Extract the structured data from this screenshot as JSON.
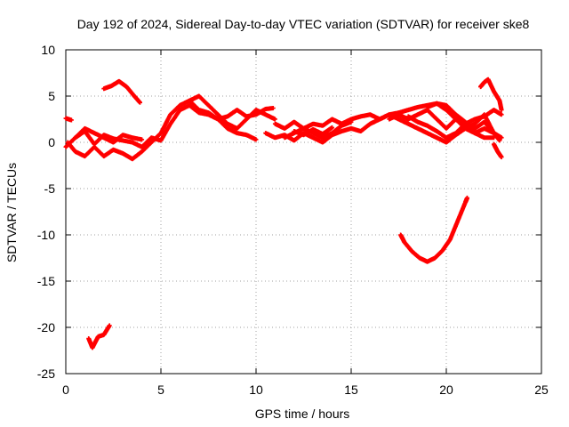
{
  "chart_data": {
    "type": "scatter",
    "title": "Day 192 of 2024, Sidereal Day-to-day VTEC variation (SDTVAR) for receiver ske8",
    "xlabel": "GPS time / hours",
    "ylabel": "SDTVAR / TECUs",
    "xlim": [
      0,
      25
    ],
    "ylim": [
      -25,
      10
    ],
    "xticks": [
      "0",
      "5",
      "10",
      "15",
      "20",
      "25"
    ],
    "yticks": [
      "10",
      "5",
      "0",
      "-5",
      "-10",
      "-15",
      "-20",
      "-25"
    ],
    "grid": true,
    "marker": "plus",
    "marker_color": "#ff0000",
    "series": [
      {
        "name": "s1",
        "x": [
          0.0,
          0.5,
          1.0,
          1.5,
          2.0,
          2.5,
          3.0,
          3.5,
          4.0,
          4.5,
          5.0,
          5.5,
          6.0,
          6.5,
          7.0,
          7.5,
          8.0,
          8.5,
          9.0,
          9.5,
          10.0,
          10.5,
          10.9
        ],
        "y": [
          -0.5,
          0.5,
          1.2,
          -0.2,
          0.8,
          0.4,
          0.2,
          0.0,
          -0.5,
          0.5,
          0.2,
          2.0,
          3.5,
          4.0,
          3.2,
          3.0,
          2.5,
          2.8,
          3.5,
          2.8,
          3.0,
          3.6,
          3.7
        ]
      },
      {
        "name": "s2",
        "x": [
          0.1,
          0.5,
          1.0,
          1.5,
          2.0,
          2.5,
          3.0,
          3.5,
          4.0,
          4.5,
          5.0,
          5.5,
          6.0,
          6.5,
          7.0,
          7.5,
          8.0,
          8.5,
          9.0,
          9.5,
          10.0
        ],
        "y": [
          0.0,
          -1.0,
          -1.5,
          -0.5,
          -1.5,
          -0.8,
          -1.2,
          -1.8,
          -1.0,
          0.0,
          1.0,
          3.0,
          4.0,
          4.5,
          3.5,
          3.2,
          2.5,
          1.5,
          1.0,
          0.8,
          0.3
        ]
      },
      {
        "name": "s3",
        "x": [
          0.5,
          1.0,
          1.5,
          2.0,
          2.5,
          3.0,
          3.5,
          4.0
        ],
        "y": [
          0.5,
          1.5,
          1.0,
          0.5,
          0.0,
          0.8,
          0.5,
          0.3
        ]
      },
      {
        "name": "s4",
        "x": [
          6.5,
          7.0,
          7.5,
          8.0,
          8.5,
          9.0,
          9.5,
          10.0,
          10.5,
          11.0
        ],
        "y": [
          4.5,
          5.0,
          4.0,
          3.0,
          2.0,
          1.5,
          2.5,
          3.5,
          3.0,
          2.5
        ]
      },
      {
        "name": "s5",
        "x": [
          0.0,
          0.3
        ],
        "y": [
          2.6,
          2.4
        ]
      },
      {
        "name": "s6",
        "x": [
          2.0,
          2.4,
          2.8,
          3.2,
          3.6,
          3.9
        ],
        "y": [
          5.8,
          6.1,
          6.6,
          6.0,
          5.0,
          4.3
        ]
      },
      {
        "name": "s7",
        "x": [
          1.2,
          1.4,
          1.7,
          2.0,
          2.3
        ],
        "y": [
          -21.2,
          -22.2,
          -21.0,
          -20.8,
          -19.8
        ]
      },
      {
        "name": "s8",
        "x": [
          11.0,
          11.5,
          12.0,
          12.5,
          13.0,
          13.5,
          14.0,
          14.5,
          15.0,
          15.5,
          16.0,
          16.5,
          17.0,
          17.5,
          18.0,
          18.5,
          19.0,
          19.5,
          20.0,
          20.5,
          21.0,
          21.5,
          22.0,
          22.5,
          22.9
        ],
        "y": [
          2.0,
          1.5,
          2.2,
          1.5,
          2.0,
          1.8,
          2.5,
          2.0,
          2.5,
          2.8,
          3.0,
          2.5,
          3.0,
          3.2,
          3.5,
          3.8,
          4.0,
          4.2,
          3.5,
          2.5,
          2.0,
          2.5,
          2.8,
          3.5,
          3.0
        ]
      },
      {
        "name": "s9",
        "x": [
          10.5,
          11.0,
          11.5,
          12.0,
          12.5,
          13.0,
          13.5,
          14.0,
          14.5,
          15.0,
          15.5,
          16.0,
          16.5,
          17.0,
          17.5,
          18.0,
          18.5,
          19.0,
          19.5,
          20.0,
          20.5,
          21.0,
          21.5,
          22.0,
          22.5,
          22.9
        ],
        "y": [
          1.0,
          0.5,
          0.8,
          0.2,
          1.0,
          0.5,
          0.0,
          0.8,
          1.2,
          1.5,
          1.2,
          2.0,
          2.5,
          3.0,
          2.5,
          2.0,
          1.5,
          1.0,
          0.5,
          0.0,
          0.8,
          1.5,
          1.0,
          1.5,
          1.0,
          0.5
        ]
      },
      {
        "name": "s10",
        "x": [
          11.5,
          12.0,
          12.5,
          13.0,
          13.5,
          14.0,
          14.5,
          15.0
        ],
        "y": [
          0.5,
          1.0,
          1.5,
          1.0,
          0.5,
          1.0,
          1.8,
          2.2
        ]
      },
      {
        "name": "s11",
        "x": [
          12.0,
          12.5,
          13.0,
          13.5,
          14.0
        ],
        "y": [
          1.2,
          0.8,
          1.4,
          0.9,
          1.6
        ]
      },
      {
        "name": "s12",
        "x": [
          17.0,
          17.5,
          18.0,
          18.5,
          19.0,
          19.5,
          20.0,
          20.5,
          21.0,
          21.5,
          22.0,
          22.5
        ],
        "y": [
          2.5,
          3.0,
          2.5,
          3.0,
          3.5,
          2.5,
          1.5,
          2.5,
          1.5,
          2.0,
          3.0,
          1.0
        ]
      },
      {
        "name": "s13",
        "x": [
          18.0,
          18.5,
          19.0,
          19.5,
          20.0,
          20.5,
          21.0,
          21.5,
          22.0,
          22.5,
          22.8
        ],
        "y": [
          2.8,
          2.2,
          1.8,
          1.2,
          0.5,
          1.0,
          2.0,
          1.5,
          2.2,
          1.0,
          0.2
        ]
      },
      {
        "name": "s14",
        "x": [
          19.0,
          19.5,
          20.0,
          20.5,
          21.0,
          21.5,
          22.0,
          22.5
        ],
        "y": [
          3.8,
          4.2,
          4.0,
          3.0,
          2.2,
          1.0,
          0.5,
          0.5
        ]
      },
      {
        "name": "s15",
        "x": [
          21.8,
          22.0,
          22.2,
          22.5,
          22.8,
          22.9
        ],
        "y": [
          6.0,
          6.5,
          6.8,
          5.5,
          4.5,
          3.5
        ]
      },
      {
        "name": "s16",
        "x": [
          22.5,
          22.7,
          22.9
        ],
        "y": [
          -0.2,
          -1.0,
          -1.6
        ]
      },
      {
        "name": "s17",
        "x": [
          17.6,
          17.8,
          18.2,
          18.6,
          19.0,
          19.4,
          19.8,
          20.2,
          20.6,
          21.0,
          21.1
        ],
        "y": [
          -10.0,
          -10.8,
          -11.8,
          -12.5,
          -12.9,
          -12.5,
          -11.7,
          -10.5,
          -8.5,
          -6.5,
          -6.0
        ]
      }
    ]
  }
}
